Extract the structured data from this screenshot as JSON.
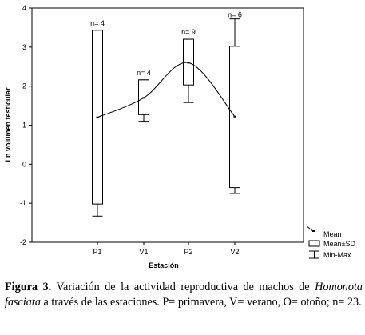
{
  "chart_data": {
    "type": "box",
    "ylabel": "Ln volumen testicular",
    "xlabel": "Estación",
    "categories": [
      "P1",
      "V1",
      "P2",
      "V2"
    ],
    "ylim": [
      -2,
      4
    ],
    "yticks": [
      "-2",
      "-1",
      "0",
      "1",
      "2",
      "3",
      "4"
    ],
    "grid": false,
    "series": [
      {
        "category": "P1",
        "mean": 1.2,
        "sd_low": -1.02,
        "sd_high": 3.43,
        "min": -1.33,
        "max": 3.43,
        "n_label": "n= 4"
      },
      {
        "category": "V1",
        "mean": 1.7,
        "sd_low": 1.27,
        "sd_high": 2.16,
        "min": 1.1,
        "max": 2.16,
        "n_label": "n= 4"
      },
      {
        "category": "P2",
        "mean": 2.6,
        "sd_low": 2.03,
        "sd_high": 3.2,
        "min": 1.58,
        "max": 3.2,
        "n_label": "n= 9"
      },
      {
        "category": "V2",
        "mean": 1.22,
        "sd_low": -0.6,
        "sd_high": 3.02,
        "min": -0.75,
        "max": 3.72,
        "n_label": "n= 6"
      }
    ],
    "legend": {
      "position": "bottom-right",
      "items": [
        "Mean",
        "Mean±SD",
        "Min-Max"
      ]
    }
  },
  "caption": {
    "figure_label": "Figura 3.",
    "text_1": " Variación de la actividad reproductiva de machos de ",
    "species": "Homonota fasciata",
    "text_2": " a través de las estaciones. P= primavera, V= verano, O= otoño; n= 23."
  }
}
